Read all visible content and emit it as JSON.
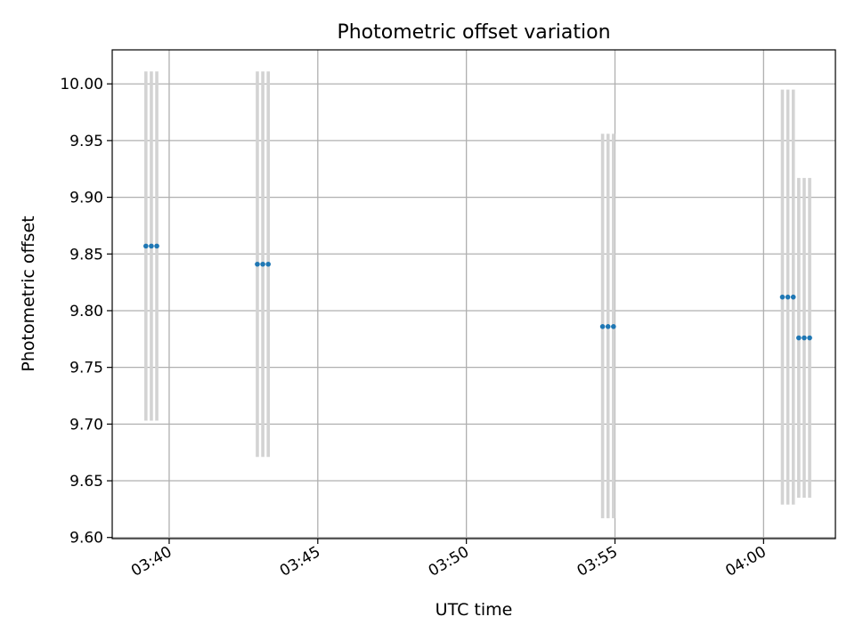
{
  "chart_data": {
    "type": "scatter",
    "title": "Photometric offset variation",
    "xlabel": "UTC time",
    "ylabel": "Photometric offset",
    "x_tick_labels": [
      "03:40",
      "03:45",
      "03:50",
      "03:55",
      "04:00"
    ],
    "x_tick_times": [
      "03:40:00",
      "03:45:00",
      "03:50:00",
      "03:55:00",
      "04:00:00"
    ],
    "y_tick_labels": [
      "9.60",
      "9.65",
      "9.70",
      "9.75",
      "9.80",
      "9.85",
      "9.90",
      "9.95",
      "10.00"
    ],
    "y_tick_values": [
      9.6,
      9.65,
      9.7,
      9.75,
      9.8,
      9.85,
      9.9,
      9.95,
      10.0
    ],
    "xlim": [
      "03:38:05",
      "04:02:25"
    ],
    "ylim": [
      9.599,
      10.03
    ],
    "grid": true,
    "legend": "none",
    "colors": {
      "marker": "#1f77b4",
      "error_bar": "#d3d3d3",
      "grid": "#b0b0b0"
    },
    "points": [
      {
        "t": "03:39:13",
        "y": 9.857,
        "err_low": 9.703,
        "err_high": 10.011
      },
      {
        "t": "03:39:24",
        "y": 9.857,
        "err_low": 9.703,
        "err_high": 10.011
      },
      {
        "t": "03:39:35",
        "y": 9.857,
        "err_low": 9.703,
        "err_high": 10.011
      },
      {
        "t": "03:42:58",
        "y": 9.841,
        "err_low": 9.671,
        "err_high": 10.011
      },
      {
        "t": "03:43:09",
        "y": 9.841,
        "err_low": 9.671,
        "err_high": 10.011
      },
      {
        "t": "03:43:20",
        "y": 9.841,
        "err_low": 9.671,
        "err_high": 10.011
      },
      {
        "t": "03:54:35",
        "y": 9.786,
        "err_low": 9.617,
        "err_high": 9.956
      },
      {
        "t": "03:54:46",
        "y": 9.786,
        "err_low": 9.617,
        "err_high": 9.956
      },
      {
        "t": "03:54:57",
        "y": 9.786,
        "err_low": 9.617,
        "err_high": 9.956
      },
      {
        "t": "04:00:38",
        "y": 9.812,
        "err_low": 9.629,
        "err_high": 9.995
      },
      {
        "t": "04:00:49",
        "y": 9.812,
        "err_low": 9.629,
        "err_high": 9.995
      },
      {
        "t": "04:01:00",
        "y": 9.812,
        "err_low": 9.629,
        "err_high": 9.995
      },
      {
        "t": "04:01:11",
        "y": 9.776,
        "err_low": 9.635,
        "err_high": 9.917
      },
      {
        "t": "04:01:22",
        "y": 9.776,
        "err_low": 9.635,
        "err_high": 9.917
      },
      {
        "t": "04:01:33",
        "y": 9.776,
        "err_low": 9.635,
        "err_high": 9.917
      }
    ]
  }
}
